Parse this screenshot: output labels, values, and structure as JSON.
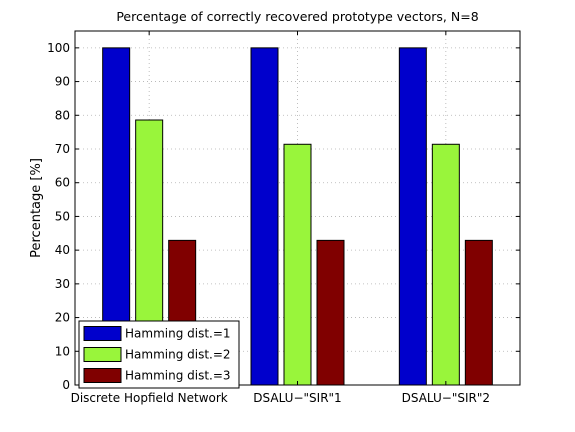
{
  "chart_data": {
    "type": "bar",
    "title": "Percentage of correctly recovered prototype vectors, N=8",
    "xlabel": "",
    "ylabel": "Percentage [%]",
    "ylim": [
      0,
      105
    ],
    "yticks": [
      0,
      10,
      20,
      30,
      40,
      50,
      60,
      70,
      80,
      90,
      100
    ],
    "categories": [
      "Discrete Hopfield Network",
      "DSALU−\"SIR\"1",
      "DSALU−\"SIR\"2"
    ],
    "series": [
      {
        "name": "Hamming dist.=1",
        "color": "#0000cc",
        "values": [
          100,
          100,
          100
        ]
      },
      {
        "name": "Hamming dist.=2",
        "color": "#99f53b",
        "values": [
          78.6,
          71.4,
          71.4
        ]
      },
      {
        "name": "Hamming dist.=3",
        "color": "#800000",
        "values": [
          42.9,
          42.9,
          42.9
        ]
      }
    ],
    "grid": "dotted",
    "legend": "bottom-left"
  }
}
